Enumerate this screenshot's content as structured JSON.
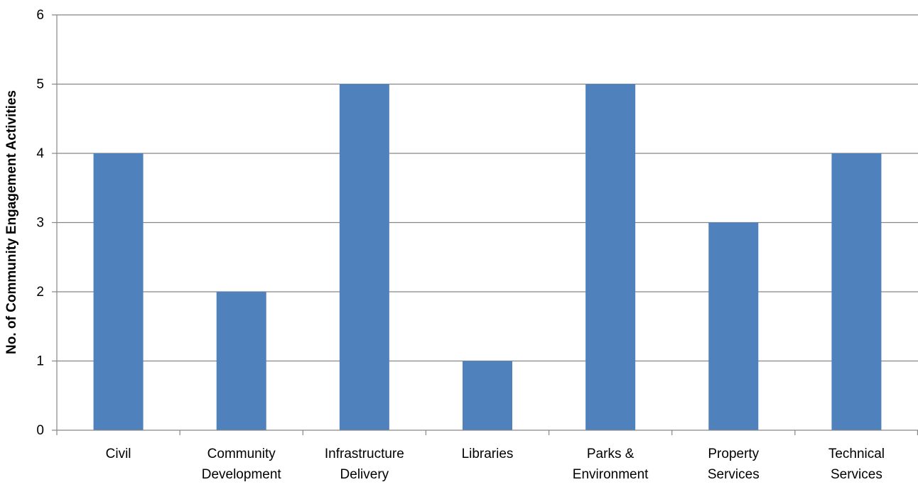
{
  "chart_data": {
    "type": "bar",
    "title": "",
    "xlabel": "",
    "ylabel": "No. of Community Engagement Activities",
    "categories": [
      [
        "Civil"
      ],
      [
        "Community",
        "Development"
      ],
      [
        "Infrastructure",
        "Delivery"
      ],
      [
        "Libraries"
      ],
      [
        "Parks &",
        "Environment"
      ],
      [
        "Property",
        "Services"
      ],
      [
        "Technical",
        "Services"
      ]
    ],
    "values": [
      4,
      2,
      5,
      1,
      5,
      3,
      4
    ],
    "ylim": [
      0,
      6
    ],
    "yticks": [
      0,
      1,
      2,
      3,
      4,
      5,
      6
    ],
    "grid": true,
    "legend": "none",
    "colors": {
      "bar": "#4F81BD",
      "grid": "#868686",
      "axis": "#868686"
    }
  }
}
